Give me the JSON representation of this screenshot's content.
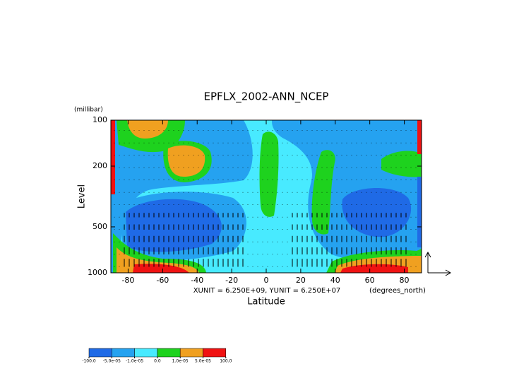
{
  "chart_data": {
    "type": "contour",
    "title": "EPFLX_2002-ANN_NCEP",
    "x_label": "Latitude",
    "y_label": "Level",
    "y_unit": "(millibar)",
    "x_unit": "(degrees_north)",
    "vector_scale": "XUNIT = 6.250E+09, YUNIT = 6.250E+07",
    "xlim": [
      -90,
      90
    ],
    "xticks": [
      -80,
      -60,
      -40,
      -20,
      0,
      20,
      40,
      60,
      80
    ],
    "ylim": [
      1000,
      100
    ],
    "yticks": [
      100,
      200,
      500,
      1000
    ],
    "y_log_scale": true,
    "colorbar": {
      "levels": [
        {
          "value": -100,
          "label": "-100.0"
        },
        {
          "value": -5e-05,
          "label": "-5.0e-05"
        },
        {
          "value": -1e-05,
          "label": "-1.0e-05"
        },
        {
          "value": 0,
          "label": "0.0"
        },
        {
          "value": 1e-05,
          "label": "1.0e-05"
        },
        {
          "value": 5e-05,
          "label": "5.0e-05"
        },
        {
          "value": 100,
          "label": "100.0"
        }
      ],
      "colors": [
        "#1f6ae6",
        "#25a2f0",
        "#48eaff",
        "#1ed21e",
        "#f0a020",
        "#f01212"
      ]
    }
  }
}
